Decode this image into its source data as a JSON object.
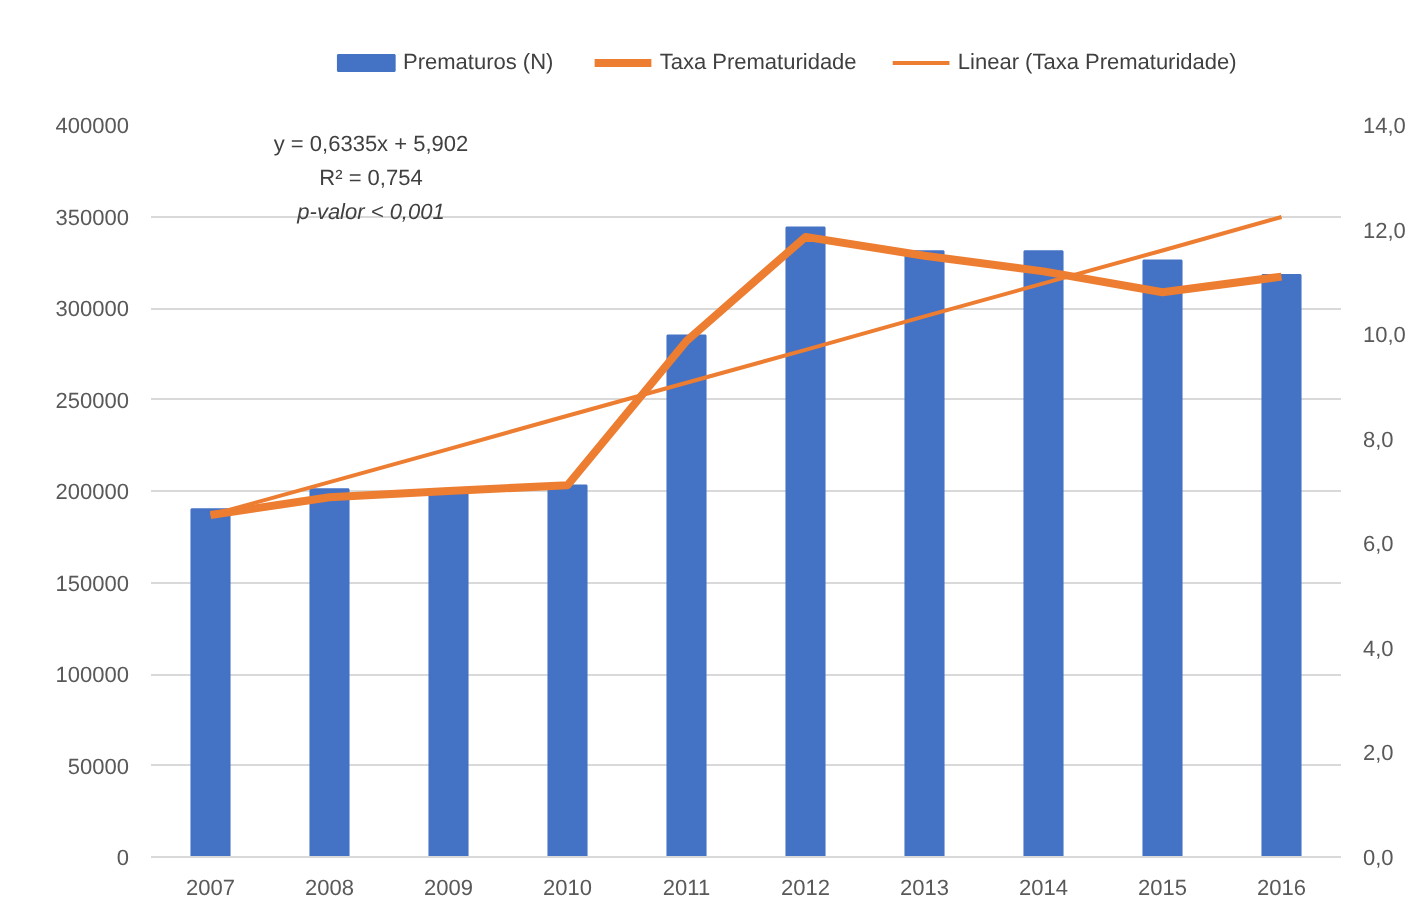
{
  "chart_data": {
    "type": "bar",
    "categories": [
      "2007",
      "2008",
      "2009",
      "2010",
      "2011",
      "2012",
      "2013",
      "2014",
      "2015",
      "2016"
    ],
    "series": [
      {
        "name": "Prematuros (N)",
        "color": "#4472c4",
        "values": [
          190000,
          201000,
          200000,
          203000,
          285000,
          344000,
          331000,
          331000,
          326000,
          318000
        ]
      },
      {
        "name": "Taxa Prematuridade",
        "type": "line",
        "axis": "y2",
        "color": "#ed7d31",
        "values": [
          6.54,
          6.88,
          7.0,
          7.11,
          9.87,
          11.86,
          11.5,
          11.2,
          10.8,
          11.1
        ]
      },
      {
        "name": "Linear (Taxa Prematuridade)",
        "type": "line",
        "axis": "y2",
        "color": "#ed7d31",
        "values": [
          6.54,
          7.17,
          7.8,
          8.44,
          9.07,
          9.7,
          10.34,
          10.97,
          11.6,
          12.24
        ]
      }
    ],
    "ylim": [
      0,
      400000
    ],
    "yticks": [
      0,
      50000,
      100000,
      150000,
      200000,
      250000,
      300000,
      350000,
      400000
    ],
    "y2lim": [
      0,
      14
    ],
    "y2ticks": [
      {
        "value": 0,
        "label": "0,0"
      },
      {
        "value": 2,
        "label": "2,0"
      },
      {
        "value": 4,
        "label": "4,0"
      },
      {
        "value": 6,
        "label": "6,0"
      },
      {
        "value": 8,
        "label": "8,0"
      },
      {
        "value": 10,
        "label": "10,0"
      },
      {
        "value": 12,
        "label": "12,0"
      },
      {
        "value": 14,
        "label": "14,0"
      }
    ],
    "annotations": [
      "y = 0,6335x + 5,902",
      "R² = 0,754",
      "p-valor < 0,001"
    ],
    "grid": "y",
    "legend": "top"
  }
}
